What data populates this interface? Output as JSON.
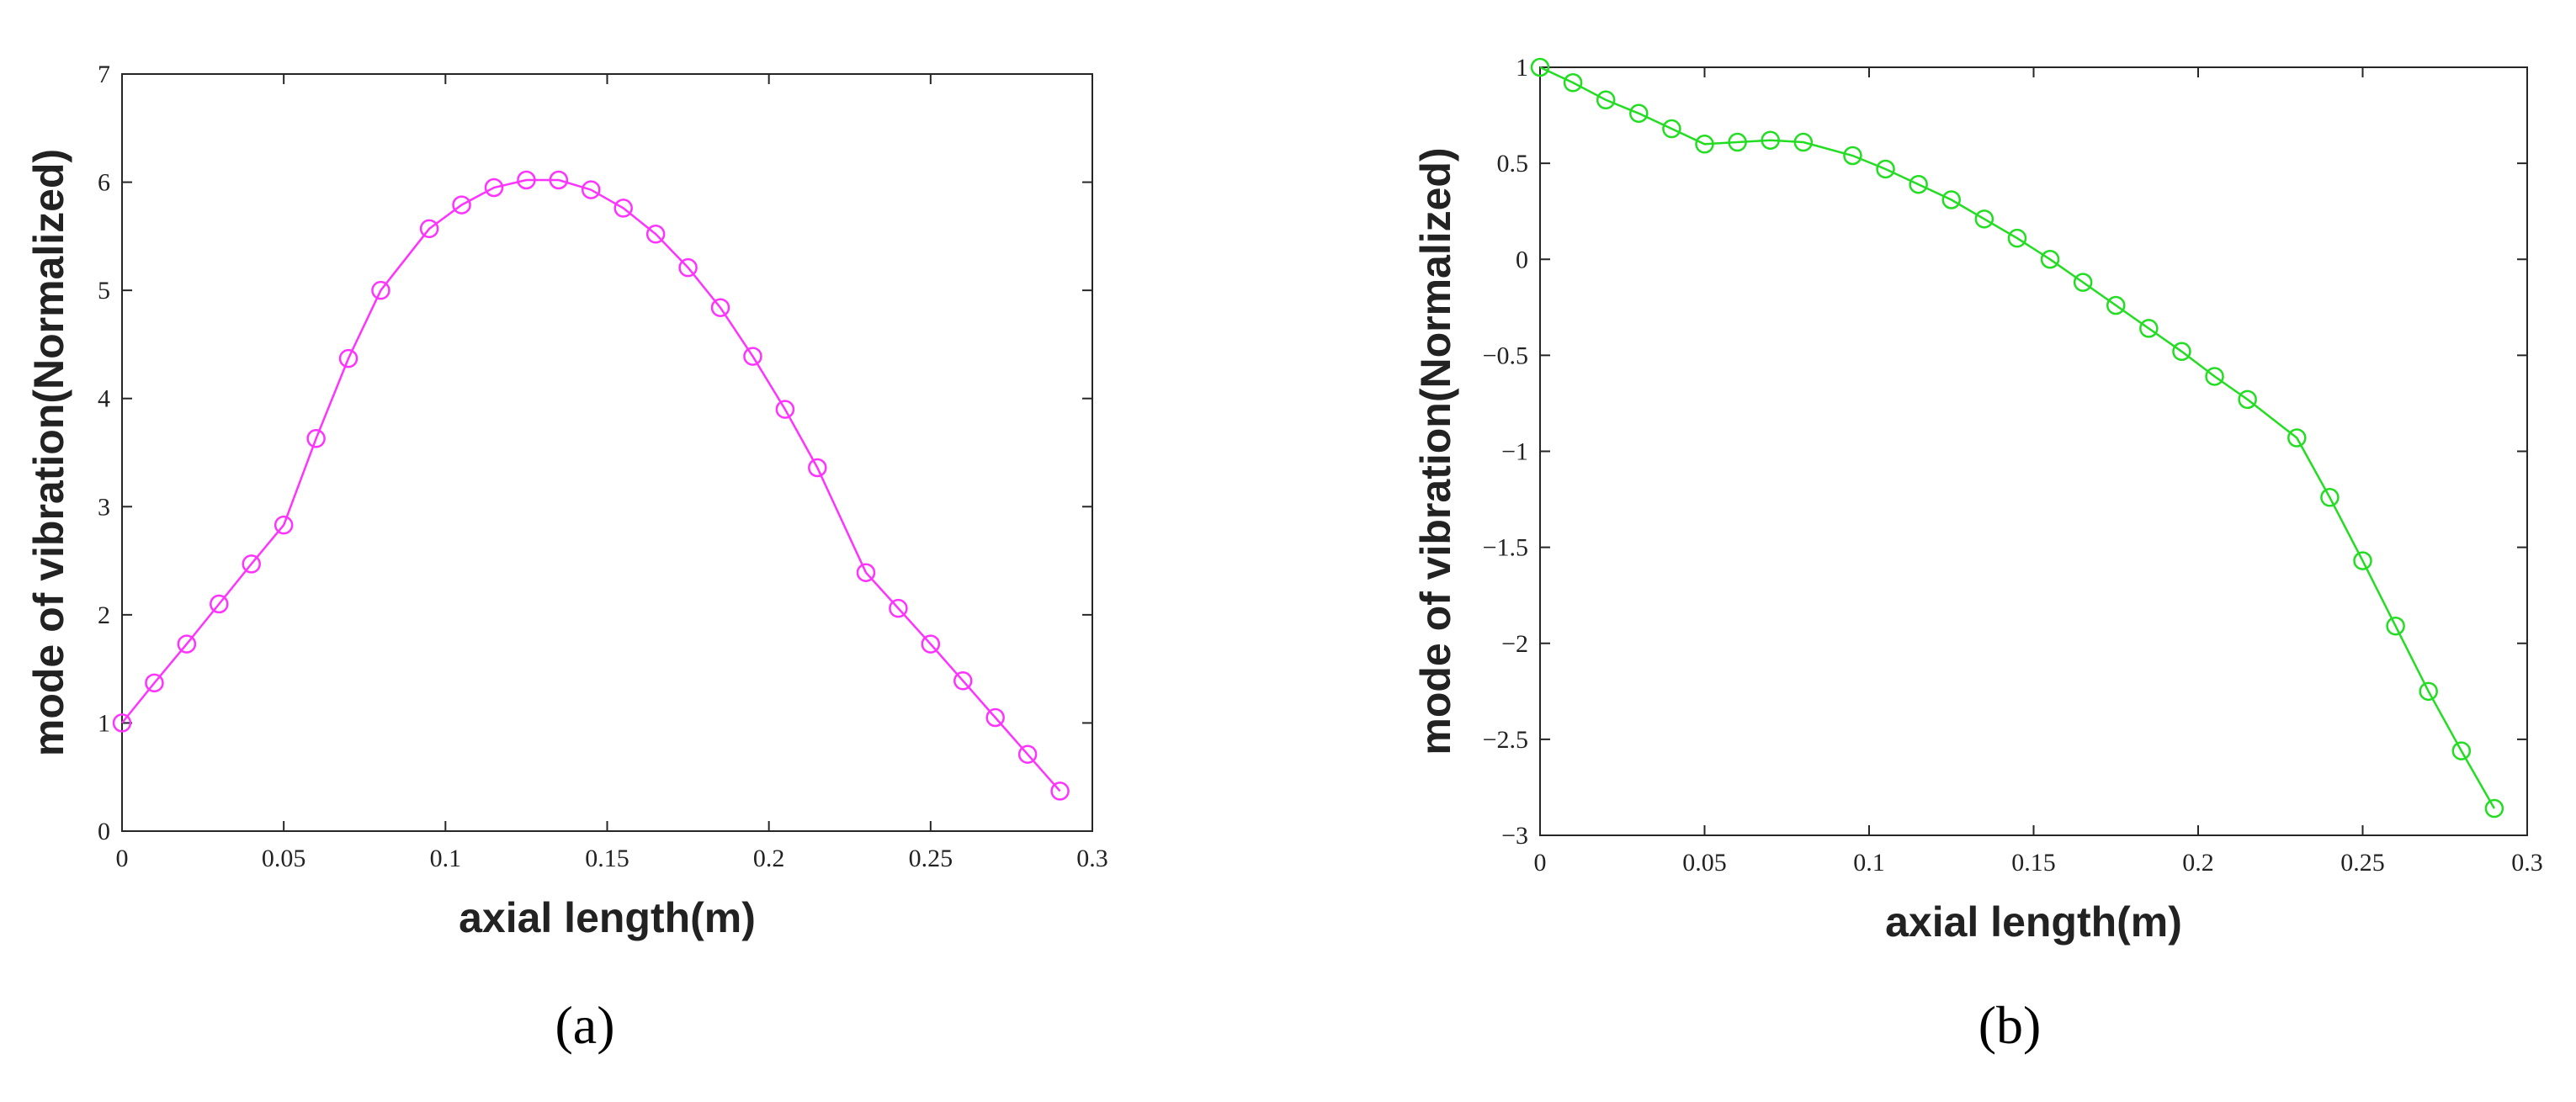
{
  "chart_data": [
    {
      "type": "line",
      "panel_label": "(a)",
      "xlabel": "axial length(m)",
      "ylabel": "mode of vibration(Normalized)",
      "xlim": [
        0,
        0.3
      ],
      "ylim": [
        0,
        7
      ],
      "xticks": [
        0,
        0.05,
        0.1,
        0.15,
        0.2,
        0.25,
        0.3
      ],
      "xtick_labels": [
        "0",
        "0.05",
        "0.1",
        "0.15",
        "0.2",
        "0.25",
        "0.3"
      ],
      "yticks": [
        0,
        1,
        2,
        3,
        4,
        5,
        6,
        7
      ],
      "ytick_labels": [
        "0",
        "1",
        "2",
        "3",
        "4",
        "5",
        "6",
        "7"
      ],
      "grid": false,
      "marker": "circle",
      "color": "#ff33ff",
      "series": [
        {
          "x": [
            0,
            0.01,
            0.02,
            0.03,
            0.04,
            0.05,
            0.06,
            0.07,
            0.08,
            0.095,
            0.105,
            0.115,
            0.125,
            0.135,
            0.145,
            0.155,
            0.165,
            0.175,
            0.185,
            0.195,
            0.205,
            0.215,
            0.23,
            0.24,
            0.25,
            0.26,
            0.27,
            0.28,
            0.29
          ],
          "y": [
            1.0,
            1.37,
            1.73,
            2.1,
            2.47,
            2.83,
            3.63,
            4.37,
            5.0,
            5.57,
            5.79,
            5.95,
            6.02,
            6.02,
            5.93,
            5.76,
            5.52,
            5.21,
            4.84,
            4.39,
            3.9,
            3.36,
            2.39,
            2.06,
            1.73,
            1.39,
            1.05,
            0.71,
            0.37
          ]
        }
      ]
    },
    {
      "type": "line",
      "panel_label": "(b)",
      "xlabel": "axial length(m)",
      "ylabel": "mode of vibration(Normalized)",
      "xlim": [
        0,
        0.3
      ],
      "ylim": [
        -3,
        1
      ],
      "xticks": [
        0,
        0.05,
        0.1,
        0.15,
        0.2,
        0.25,
        0.3
      ],
      "xtick_labels": [
        "0",
        "0.05",
        "0.1",
        "0.15",
        "0.2",
        "0.25",
        "0.3"
      ],
      "yticks": [
        -3,
        -2.5,
        -2,
        -1.5,
        -1,
        -0.5,
        0,
        0.5,
        1
      ],
      "ytick_labels": [
        "−3",
        "−2.5",
        "−2",
        "−1.5",
        "−1",
        "−0.5",
        "0",
        "0.5",
        "1"
      ],
      "grid": false,
      "marker": "circle",
      "color": "#22dd22",
      "series": [
        {
          "x": [
            0,
            0.01,
            0.02,
            0.03,
            0.04,
            0.05,
            0.06,
            0.07,
            0.08,
            0.095,
            0.105,
            0.115,
            0.125,
            0.135,
            0.145,
            0.155,
            0.165,
            0.175,
            0.185,
            0.195,
            0.205,
            0.215,
            0.23,
            0.24,
            0.25,
            0.26,
            0.27,
            0.28,
            0.29
          ],
          "y": [
            1.0,
            0.92,
            0.83,
            0.76,
            0.68,
            0.6,
            0.61,
            0.62,
            0.61,
            0.54,
            0.47,
            0.39,
            0.31,
            0.21,
            0.11,
            0.0,
            -0.12,
            -0.24,
            -0.36,
            -0.48,
            -0.61,
            -0.73,
            -0.93,
            -1.24,
            -1.57,
            -1.91,
            -2.25,
            -2.56,
            -2.86
          ]
        }
      ]
    }
  ]
}
